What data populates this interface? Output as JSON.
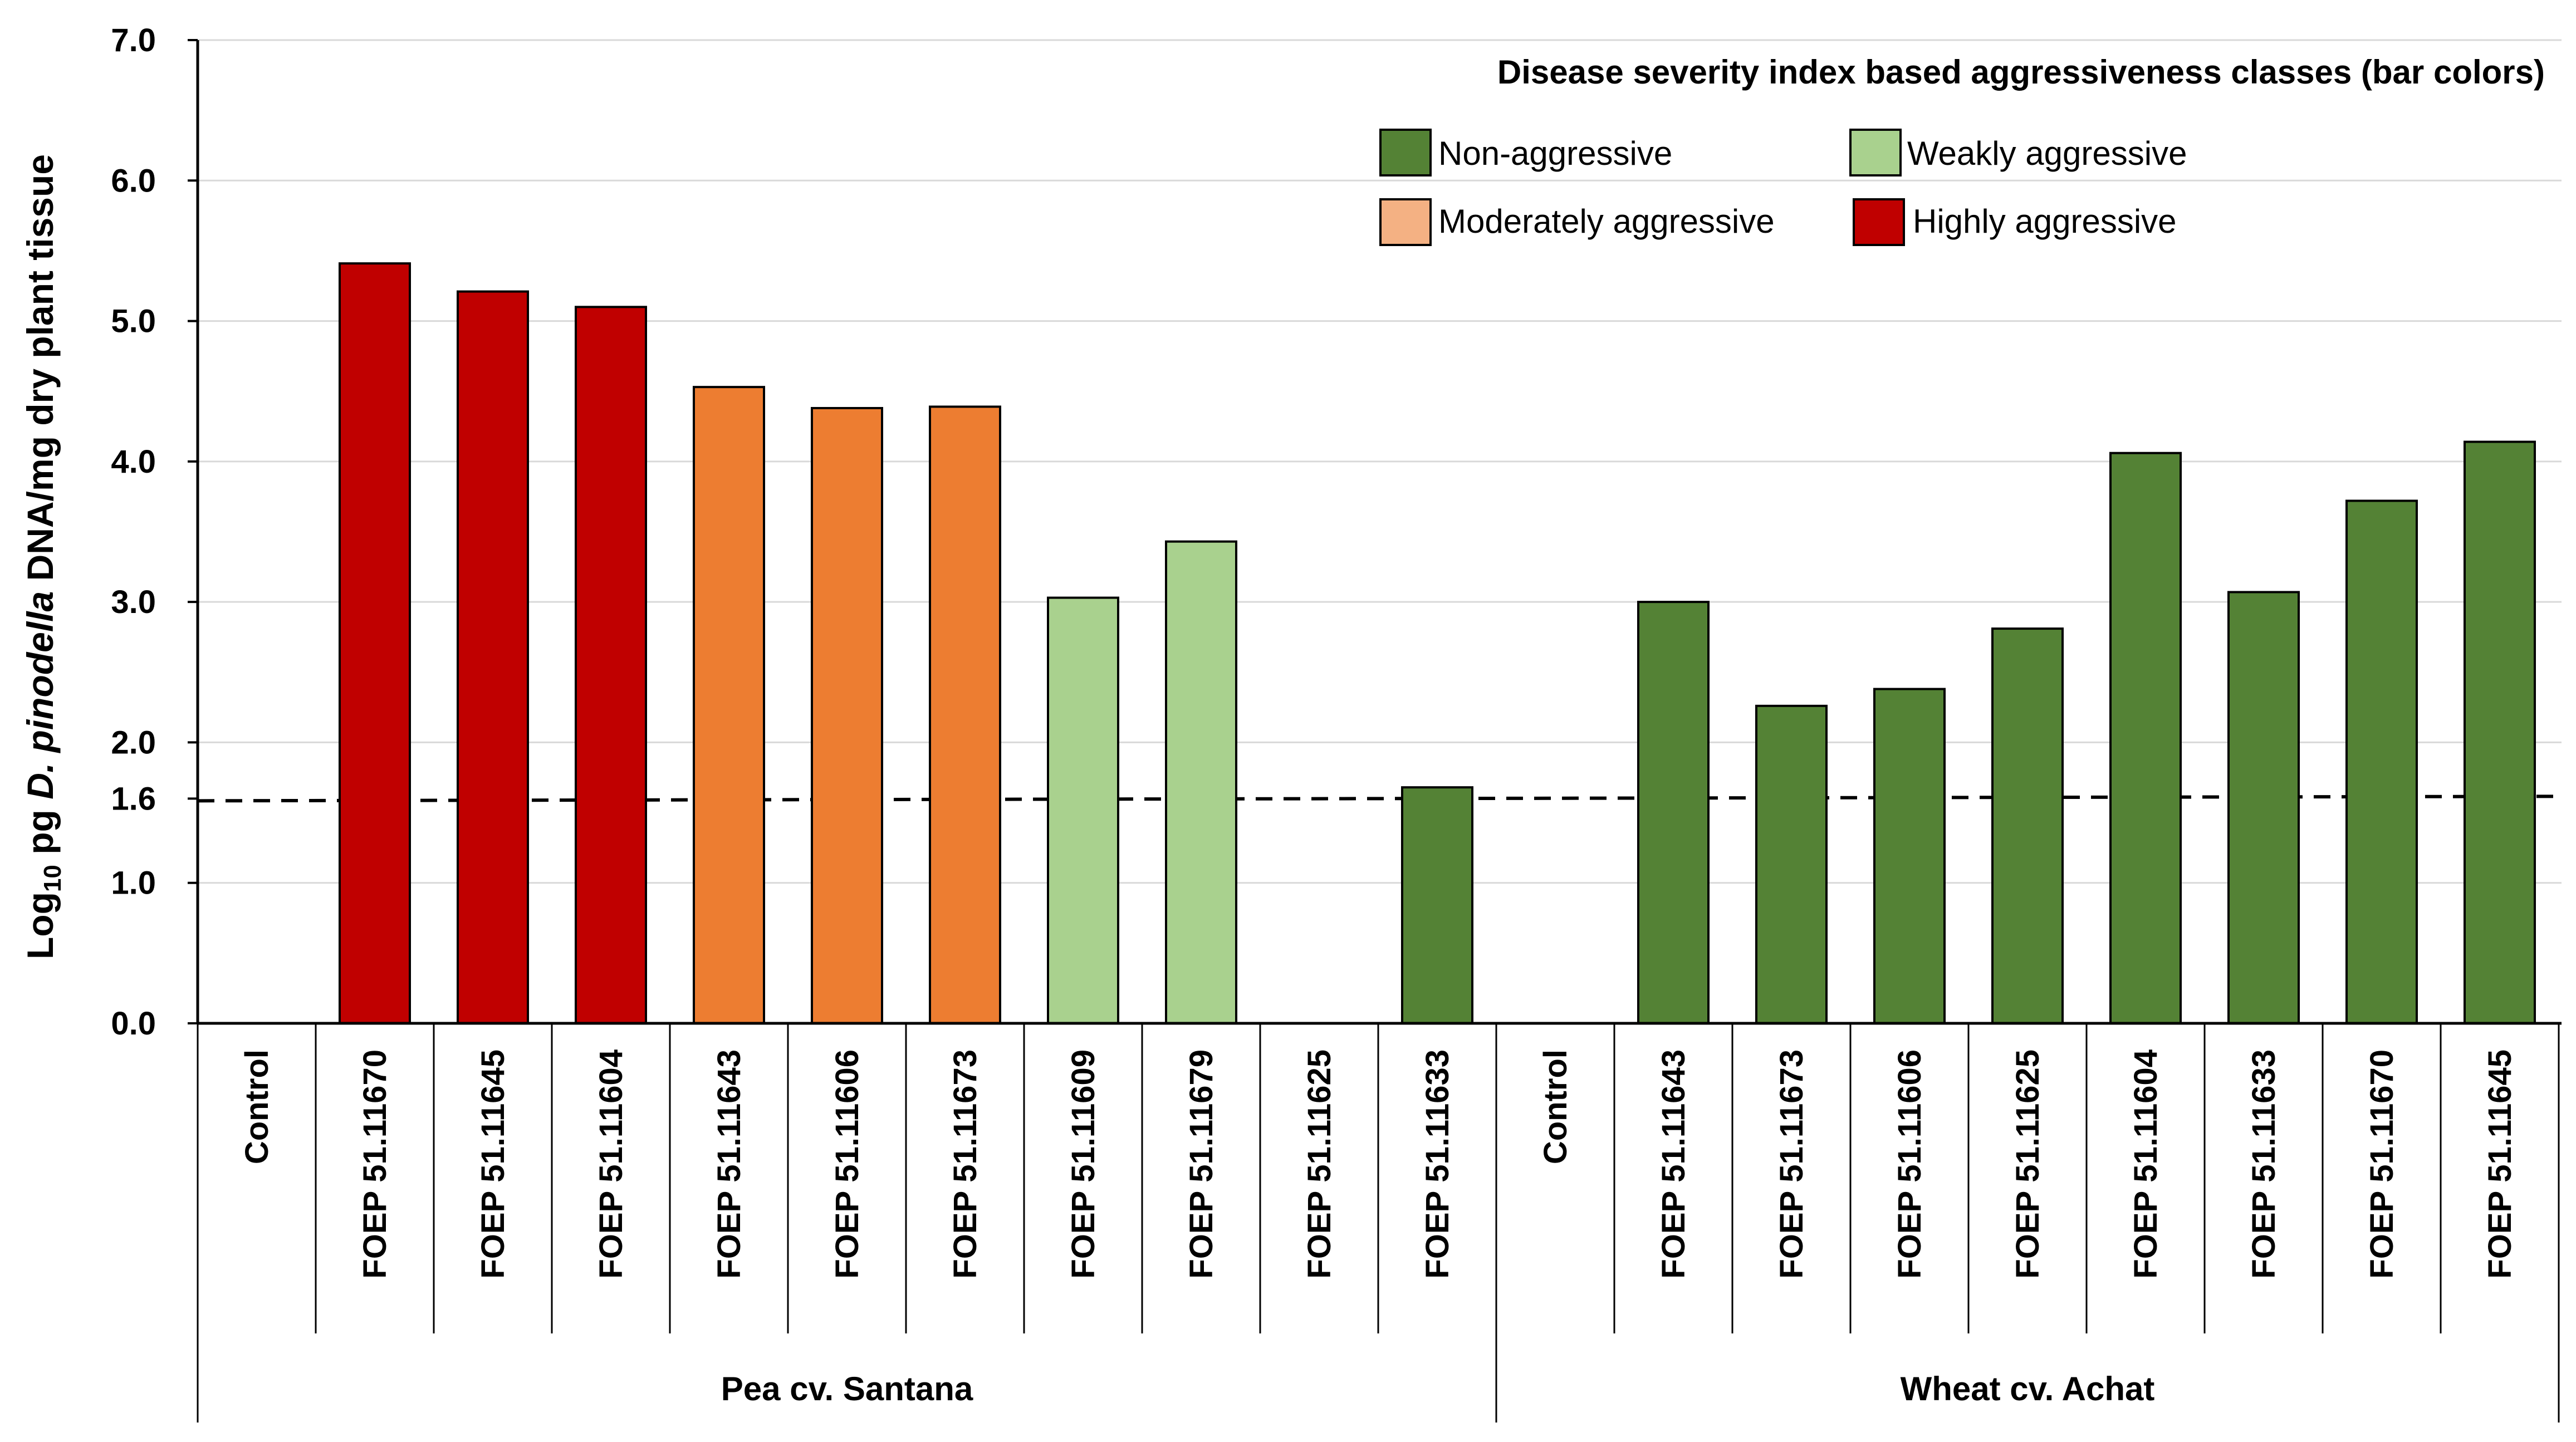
{
  "chart_data": {
    "type": "bar",
    "ylabel": {
      "prefix": "Log",
      "subscript": "10",
      "middle": " pg ",
      "italic": "D. pinodella",
      "suffix": " DNA/mg dry plant tissue"
    },
    "ylim": [
      0,
      7
    ],
    "yticks": [
      {
        "value": 0,
        "label": "0.0"
      },
      {
        "value": 1,
        "label": "1.0"
      },
      {
        "value": 1.6,
        "label": "1.6"
      },
      {
        "value": 2,
        "label": "2.0"
      },
      {
        "value": 3,
        "label": "3.0"
      },
      {
        "value": 4,
        "label": "4.0"
      },
      {
        "value": 5,
        "label": "5.0"
      },
      {
        "value": 6,
        "label": "6.0"
      },
      {
        "value": 7,
        "label": "7.0"
      }
    ],
    "gridlines": [
      1,
      2,
      3,
      4,
      5,
      6,
      7
    ],
    "threshold": 1.6,
    "legend": {
      "title": "Disease severity index based aggressiveness classes (bar colors)",
      "placement": "top-right",
      "items": [
        {
          "key": "non",
          "label": "Non-aggressive"
        },
        {
          "key": "weak",
          "label": "Weakly aggressive"
        },
        {
          "key": "moderate",
          "label": "Moderately aggressive"
        },
        {
          "key": "high",
          "label": "Highly aggressive"
        }
      ]
    },
    "class_colors": {
      "non": "#548235",
      "weak": "#a9d18e",
      "moderate": "#ed7d31",
      "high": "#c00000"
    },
    "legend_swatch_colors": {
      "non": "#548235",
      "weak": "#a9d18e",
      "moderate": "#f4b183",
      "high": "#c00000"
    },
    "groups": [
      {
        "name": "Pea cv. Santana",
        "bars": [
          {
            "category": "Control",
            "value": null,
            "class": null
          },
          {
            "category": "FOEP 51.11670",
            "value": 5.41,
            "class": "high"
          },
          {
            "category": "FOEP 51.11645",
            "value": 5.21,
            "class": "high"
          },
          {
            "category": "FOEP 51.11604",
            "value": 5.1,
            "class": "high"
          },
          {
            "category": "FOEP 51.11643",
            "value": 4.53,
            "class": "moderate"
          },
          {
            "category": "FOEP 51.11606",
            "value": 4.38,
            "class": "moderate"
          },
          {
            "category": "FOEP 51.11673",
            "value": 4.39,
            "class": "moderate"
          },
          {
            "category": "FOEP 51.11609",
            "value": 3.03,
            "class": "weak"
          },
          {
            "category": "FOEP 51.11679",
            "value": 3.43,
            "class": "weak"
          },
          {
            "category": "FOEP 51.11625",
            "value": null,
            "class": null
          },
          {
            "category": "FOEP 51.11633",
            "value": 1.68,
            "class": "non"
          }
        ]
      },
      {
        "name": "Wheat cv. Achat",
        "bars": [
          {
            "category": "Control",
            "value": null,
            "class": null
          },
          {
            "category": "FOEP 51.11643",
            "value": 3.0,
            "class": "non"
          },
          {
            "category": "FOEP 51.11673",
            "value": 2.26,
            "class": "non"
          },
          {
            "category": "FOEP 51.11606",
            "value": 2.38,
            "class": "non"
          },
          {
            "category": "FOEP 51.11625",
            "value": 2.81,
            "class": "non"
          },
          {
            "category": "FOEP 51.11604",
            "value": 4.06,
            "class": "non"
          },
          {
            "category": "FOEP 51.11633",
            "value": 3.07,
            "class": "non"
          },
          {
            "category": "FOEP 51.11670",
            "value": 3.72,
            "class": "non"
          },
          {
            "category": "FOEP 51.11645",
            "value": 4.14,
            "class": "non"
          }
        ]
      }
    ]
  }
}
